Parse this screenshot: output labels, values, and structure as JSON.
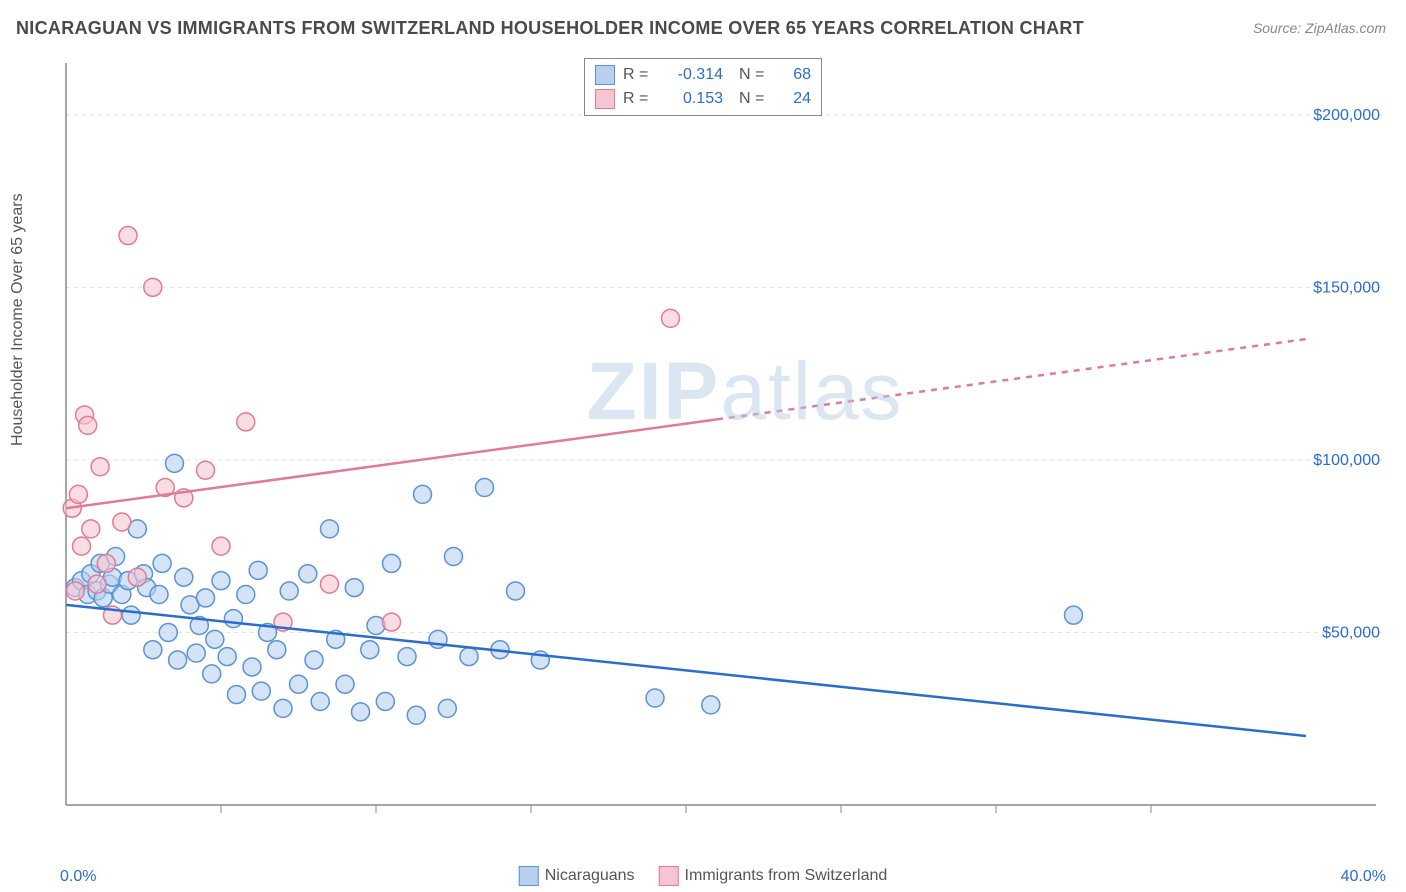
{
  "title": "NICARAGUAN VS IMMIGRANTS FROM SWITZERLAND HOUSEHOLDER INCOME OVER 65 YEARS CORRELATION CHART",
  "source": "Source: ZipAtlas.com",
  "ylabel": "Householder Income Over 65 years",
  "watermark_bold": "ZIP",
  "watermark_rest": "atlas",
  "chart": {
    "type": "scatter-with-trend",
    "background_color": "#ffffff",
    "grid_color": "#e4e4e4",
    "axis_color": "#888888",
    "text_color": "#555555",
    "tick_label_color": "#2a6dd0",
    "xlim": [
      0,
      40
    ],
    "ylim": [
      0,
      215000
    ],
    "xticks": [
      0,
      40
    ],
    "xtick_labels": [
      "0.0%",
      "40.0%"
    ],
    "yticks": [
      50000,
      100000,
      150000,
      200000
    ],
    "ytick_labels": [
      "$50,000",
      "$100,000",
      "$150,000",
      "$200,000"
    ],
    "x_minor_step": 5,
    "marker_radius": 9,
    "marker_stroke_width": 1.5,
    "trend_line_width": 2.5,
    "label_fontsize": 16,
    "title_fontsize": 18
  },
  "series": [
    {
      "name": "Nicaraguans",
      "fill": "#b7d0ef",
      "stroke": "#5a93d6",
      "fill_opacity": 0.6,
      "r_label": "R =",
      "r_value": "-0.314",
      "n_label": "N =",
      "n_value": "68",
      "trend": {
        "x1": 0,
        "y1": 58000,
        "x2": 40,
        "y2": 20000,
        "color": "#2a6dd0",
        "solid_until_x": 40
      },
      "points": [
        [
          0.3,
          63000
        ],
        [
          0.5,
          65000
        ],
        [
          0.7,
          61000
        ],
        [
          0.8,
          67000
        ],
        [
          1.0,
          62000
        ],
        [
          1.1,
          70000
        ],
        [
          1.2,
          60000
        ],
        [
          1.4,
          64000
        ],
        [
          1.5,
          66000
        ],
        [
          1.6,
          72000
        ],
        [
          1.8,
          61000
        ],
        [
          2.0,
          65000
        ],
        [
          2.1,
          55000
        ],
        [
          2.3,
          80000
        ],
        [
          2.5,
          67000
        ],
        [
          2.6,
          63000
        ],
        [
          2.8,
          45000
        ],
        [
          3.0,
          61000
        ],
        [
          3.1,
          70000
        ],
        [
          3.3,
          50000
        ],
        [
          3.5,
          99000
        ],
        [
          3.6,
          42000
        ],
        [
          3.8,
          66000
        ],
        [
          4.0,
          58000
        ],
        [
          4.2,
          44000
        ],
        [
          4.3,
          52000
        ],
        [
          4.5,
          60000
        ],
        [
          4.7,
          38000
        ],
        [
          4.8,
          48000
        ],
        [
          5.0,
          65000
        ],
        [
          5.2,
          43000
        ],
        [
          5.4,
          54000
        ],
        [
          5.5,
          32000
        ],
        [
          5.8,
          61000
        ],
        [
          6.0,
          40000
        ],
        [
          6.2,
          68000
        ],
        [
          6.3,
          33000
        ],
        [
          6.5,
          50000
        ],
        [
          6.8,
          45000
        ],
        [
          7.0,
          28000
        ],
        [
          7.2,
          62000
        ],
        [
          7.5,
          35000
        ],
        [
          7.8,
          67000
        ],
        [
          8.0,
          42000
        ],
        [
          8.2,
          30000
        ],
        [
          8.5,
          80000
        ],
        [
          8.7,
          48000
        ],
        [
          9.0,
          35000
        ],
        [
          9.3,
          63000
        ],
        [
          9.5,
          27000
        ],
        [
          9.8,
          45000
        ],
        [
          10.0,
          52000
        ],
        [
          10.3,
          30000
        ],
        [
          10.5,
          70000
        ],
        [
          11.0,
          43000
        ],
        [
          11.3,
          26000
        ],
        [
          11.5,
          90000
        ],
        [
          12.0,
          48000
        ],
        [
          12.3,
          28000
        ],
        [
          12.5,
          72000
        ],
        [
          13.0,
          43000
        ],
        [
          13.5,
          92000
        ],
        [
          14.0,
          45000
        ],
        [
          14.5,
          62000
        ],
        [
          15.3,
          42000
        ],
        [
          19.0,
          31000
        ],
        [
          20.8,
          29000
        ],
        [
          32.5,
          55000
        ]
      ]
    },
    {
      "name": "Immigrants from Switzerland",
      "fill": "#f5c6d1",
      "stroke": "#e17a99",
      "fill_opacity": 0.6,
      "r_label": "R =",
      "r_value": "0.153",
      "n_label": "N =",
      "n_value": "24",
      "trend": {
        "x1": 0,
        "y1": 86000,
        "x2": 40,
        "y2": 135000,
        "color": "#e17a99",
        "solid_until_x": 21
      },
      "points": [
        [
          0.2,
          86000
        ],
        [
          0.3,
          62000
        ],
        [
          0.4,
          90000
        ],
        [
          0.5,
          75000
        ],
        [
          0.6,
          113000
        ],
        [
          0.7,
          110000
        ],
        [
          0.8,
          80000
        ],
        [
          1.0,
          64000
        ],
        [
          1.1,
          98000
        ],
        [
          1.3,
          70000
        ],
        [
          1.5,
          55000
        ],
        [
          1.8,
          82000
        ],
        [
          2.0,
          165000
        ],
        [
          2.3,
          66000
        ],
        [
          2.8,
          150000
        ],
        [
          3.2,
          92000
        ],
        [
          3.8,
          89000
        ],
        [
          4.5,
          97000
        ],
        [
          5.0,
          75000
        ],
        [
          5.8,
          111000
        ],
        [
          7.0,
          53000
        ],
        [
          8.5,
          64000
        ],
        [
          10.5,
          53000
        ],
        [
          19.5,
          141000
        ]
      ]
    }
  ],
  "legend_bottom": [
    {
      "label": "Nicaraguans",
      "fill": "#b7d0ef",
      "stroke": "#5a93d6"
    },
    {
      "label": "Immigrants from Switzerland",
      "fill": "#f5c6d1",
      "stroke": "#e17a99"
    }
  ]
}
